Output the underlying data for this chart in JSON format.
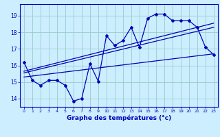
{
  "title": "Graphe des températures (°c)",
  "background_color": "#cceeff",
  "grid_color": "#99cccc",
  "line_color": "#0000bb",
  "xlim": [
    -0.5,
    23.5
  ],
  "ylim": [
    13.5,
    19.7
  ],
  "yticks": [
    14,
    15,
    16,
    17,
    18,
    19
  ],
  "xticks": [
    0,
    1,
    2,
    3,
    4,
    5,
    6,
    7,
    8,
    9,
    10,
    11,
    12,
    13,
    14,
    15,
    16,
    17,
    18,
    19,
    20,
    21,
    22,
    23
  ],
  "main_series_x": [
    0,
    1,
    2,
    3,
    4,
    5,
    6,
    7,
    8,
    9,
    10,
    11,
    12,
    13,
    14,
    15,
    16,
    17,
    18,
    19,
    20,
    21,
    22,
    23
  ],
  "main_series_y": [
    16.2,
    15.1,
    14.8,
    15.1,
    15.1,
    14.8,
    13.85,
    14.0,
    16.1,
    15.05,
    17.8,
    17.2,
    17.5,
    18.3,
    17.1,
    18.85,
    19.1,
    19.1,
    18.7,
    18.7,
    18.7,
    18.3,
    17.1,
    16.65
  ],
  "trend1_x": [
    0,
    23
  ],
  "trend1_y": [
    15.3,
    16.7
  ],
  "trend2_x": [
    0,
    23
  ],
  "trend2_y": [
    15.55,
    18.3
  ],
  "trend3_x": [
    0,
    23
  ],
  "trend3_y": [
    15.65,
    18.55
  ]
}
